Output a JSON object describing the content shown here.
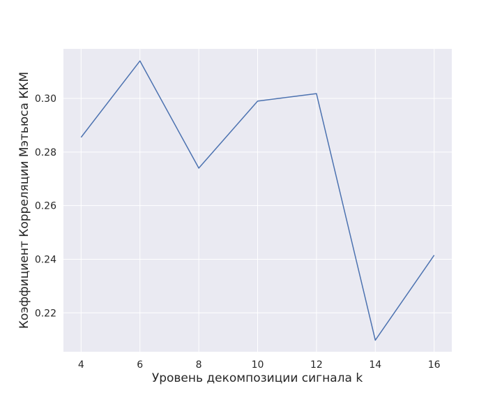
{
  "chart_data": {
    "type": "line",
    "title": "",
    "xlabel": "Уровень декомпозиции сигнала k",
    "ylabel": "Коэффициент Корреляции Мэтьюса ККМ",
    "x": [
      4,
      6,
      8,
      10,
      12,
      14,
      16
    ],
    "series": [
      {
        "values": [
          0.2855,
          0.314,
          0.274,
          0.299,
          0.3018,
          0.2098,
          0.2415
        ]
      }
    ],
    "xlim": [
      3.4,
      16.6
    ],
    "ylim": [
      0.2055,
      0.3185
    ],
    "xticks": [
      4,
      6,
      8,
      10,
      12,
      14,
      16
    ],
    "yticks": [
      0.22,
      0.24,
      0.26,
      0.28,
      0.3
    ],
    "ytick_labels": [
      "0.22",
      "0.24",
      "0.26",
      "0.28",
      "0.30"
    ],
    "grid": true,
    "colors": {
      "background": "#eaeaf2",
      "grid": "#ffffff",
      "line": "#4c72b0"
    }
  }
}
